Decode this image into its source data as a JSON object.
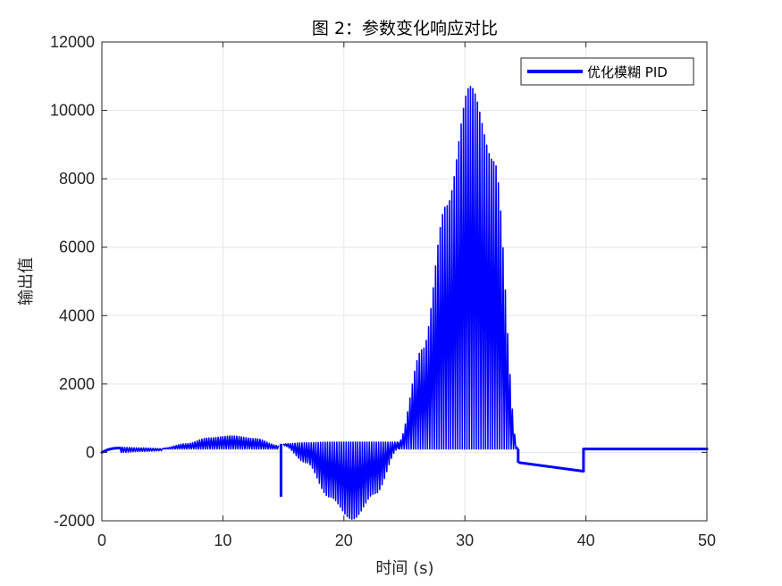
{
  "chart_data": {
    "type": "line",
    "title": "图 2：参数变化响应对比",
    "xlabel": "时间 (s)",
    "ylabel": "输出值",
    "xlim": [
      0,
      50
    ],
    "ylim": [
      -2000,
      12000
    ],
    "xticks": [
      0,
      10,
      20,
      30,
      40,
      50
    ],
    "yticks": [
      -2000,
      0,
      2000,
      4000,
      6000,
      8000,
      10000,
      12000
    ],
    "grid": true,
    "legend_position": "top-right",
    "series": [
      {
        "name": "优化模糊 PID",
        "color": "#0000ff",
        "line_width": 3,
        "baseline_segments": [
          {
            "x": [
              0,
              0.5,
              1.0,
              1.5
            ],
            "y": [
              0,
              80,
              120,
              130
            ]
          },
          {
            "x": [
              34.5,
              39.8
            ],
            "y": [
              -300,
              -550
            ]
          },
          {
            "x": [
              39.8,
              50
            ],
            "y": [
              100,
              100
            ]
          }
        ],
        "oscillation_bands": [
          {
            "x_start": 1.5,
            "x_end": 5,
            "lower": [
              0,
              30,
              50
            ],
            "upper": [
              150,
              130,
              110
            ]
          },
          {
            "x_start": 5,
            "x_end": 14.6,
            "lower": [
              100,
              100,
              100,
              100,
              100,
              100
            ],
            "upper": [
              120,
              250,
              420,
              480,
              400,
              200
            ]
          },
          {
            "x_start": 15,
            "x_end": 24.5,
            "lower": [
              200,
              -300,
              -1300,
              -1950,
              -1200,
              100
            ],
            "upper": [
              250,
              280,
              300,
              300,
              300,
              300
            ]
          },
          {
            "x_start": 24.5,
            "x_end": 34.4,
            "lower": [
              100,
              100,
              100,
              100,
              100,
              100
            ],
            "upper": [
              300,
              3000,
              7200,
              10700,
              8500,
              100
            ]
          }
        ],
        "events": [
          {
            "x": 14.8,
            "y_min": -1300,
            "y_max": 250
          },
          {
            "x": 34.4,
            "y_min": -300,
            "y_max": 100
          },
          {
            "x": 39.8,
            "y_min": -550,
            "y_max": 100
          }
        ]
      }
    ]
  }
}
